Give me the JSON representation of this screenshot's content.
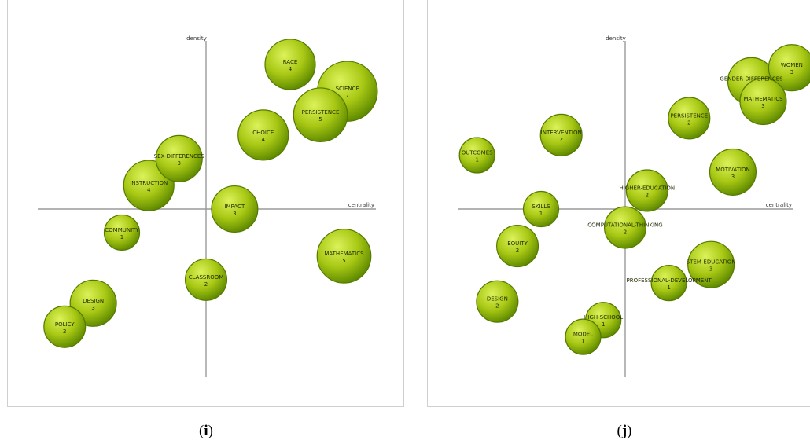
{
  "chart_data": [
    {
      "type": "scatter",
      "subtitle": "i",
      "xlabel": "centrality",
      "ylabel": "density",
      "xlim": [
        -5,
        5
      ],
      "ylim": [
        -5,
        5
      ],
      "grid": false,
      "points": [
        {
          "label": "RACE",
          "count": "4",
          "x": 2.5,
          "y": 4.3
        },
        {
          "label": "SCIENCE",
          "count": "7",
          "x": 4.2,
          "y": 3.5
        },
        {
          "label": "PERSISTENCE",
          "count": "5",
          "x": 3.4,
          "y": 2.8
        },
        {
          "label": "CHOICE",
          "count": "4",
          "x": 1.7,
          "y": 2.2
        },
        {
          "label": "SEX-DIFFERENCES",
          "count": "3",
          "x": -0.8,
          "y": 1.5
        },
        {
          "label": "INSTRUCTION",
          "count": "4",
          "x": -1.7,
          "y": 0.7
        },
        {
          "label": "IMPACT",
          "count": "3",
          "x": 0.85,
          "y": 0.0
        },
        {
          "label": "COMMUNITY",
          "count": "1",
          "x": -2.5,
          "y": -0.7
        },
        {
          "label": "MATHEMATICS",
          "count": "5",
          "x": 4.1,
          "y": -1.4
        },
        {
          "label": "CLASSROOM",
          "count": "2",
          "x": 0.0,
          "y": -2.1
        },
        {
          "label": "DESIGN",
          "count": "3",
          "x": -3.35,
          "y": -2.8
        },
        {
          "label": "POLICY",
          "count": "2",
          "x": -4.2,
          "y": -3.5
        }
      ]
    },
    {
      "type": "scatter",
      "subtitle": "j",
      "xlabel": "centrality",
      "ylabel": "density",
      "xlim": [
        -5,
        5
      ],
      "ylim": [
        -5,
        5
      ],
      "grid": false,
      "points": [
        {
          "label": "WOMEN",
          "count": "3",
          "x": 4.95,
          "y": 4.2
        },
        {
          "label": "GENDER-DIFFERENCES",
          "count": "",
          "x": 3.75,
          "y": 3.8
        },
        {
          "label": "MATHEMATICS",
          "count": "3",
          "x": 4.1,
          "y": 3.2
        },
        {
          "label": "PERSISTENCE",
          "count": "2",
          "x": 1.9,
          "y": 2.7
        },
        {
          "label": "INTERVENTION",
          "count": "2",
          "x": -1.9,
          "y": 2.2
        },
        {
          "label": "OUTCOMES",
          "count": "1",
          "x": -4.4,
          "y": 1.6
        },
        {
          "label": "MOTIVATION",
          "count": "3",
          "x": 3.2,
          "y": 1.1
        },
        {
          "label": "HIGHER-EDUCATION",
          "count": "2",
          "x": 0.65,
          "y": 0.55
        },
        {
          "label": "SKILLS",
          "count": "1",
          "x": -2.5,
          "y": 0.0
        },
        {
          "label": "COMPUTATIONAL-THINKING",
          "count": "2",
          "x": 0.0,
          "y": -0.55
        },
        {
          "label": "EQUITY",
          "count": "2",
          "x": -3.2,
          "y": -1.1
        },
        {
          "label": "STEM-EDUCATION",
          "count": "3",
          "x": 2.55,
          "y": -1.65
        },
        {
          "label": "PROFESSIONAL-DEVELOPMENT",
          "count": "1",
          "x": 1.3,
          "y": -2.2
        },
        {
          "label": "DESIGN",
          "count": "2",
          "x": -3.8,
          "y": -2.75
        },
        {
          "label": "HIGH-SCHOOL",
          "count": "1",
          "x": -0.65,
          "y": -3.3
        },
        {
          "label": "MODEL",
          "count": "1",
          "x": -1.25,
          "y": -3.8
        }
      ]
    }
  ]
}
